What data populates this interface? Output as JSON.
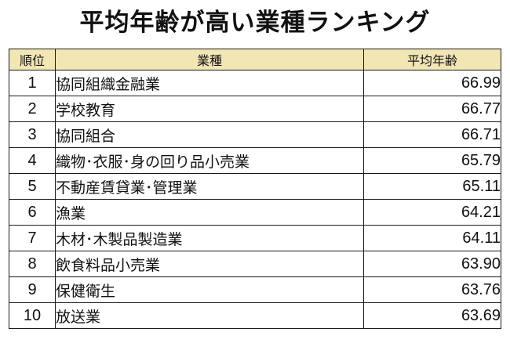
{
  "title": "平均年齢が高い業種ランキング",
  "colors": {
    "header_background": "#f3e6b5",
    "border": "#1a1a1a",
    "text": "#111111"
  },
  "table": {
    "headers": {
      "rank": "順位",
      "industry": "業種",
      "average_age": "平均年齢"
    },
    "rows": [
      {
        "rank": "1",
        "industry": "協同組織金融業",
        "average_age": "66.99"
      },
      {
        "rank": "2",
        "industry": "学校教育",
        "average_age": "66.77"
      },
      {
        "rank": "3",
        "industry": "協同組合",
        "average_age": "66.71"
      },
      {
        "rank": "4",
        "industry": "織物･衣服･身の回り品小売業",
        "average_age": "65.79"
      },
      {
        "rank": "5",
        "industry": "不動産賃貸業･管理業",
        "average_age": "65.11"
      },
      {
        "rank": "6",
        "industry": "漁業",
        "average_age": "64.21"
      },
      {
        "rank": "7",
        "industry": "木材･木製品製造業",
        "average_age": "64.11"
      },
      {
        "rank": "8",
        "industry": "飲食料品小売業",
        "average_age": "63.90"
      },
      {
        "rank": "9",
        "industry": "保健衛生",
        "average_age": "63.76"
      },
      {
        "rank": "10",
        "industry": "放送業",
        "average_age": "63.69"
      }
    ]
  }
}
